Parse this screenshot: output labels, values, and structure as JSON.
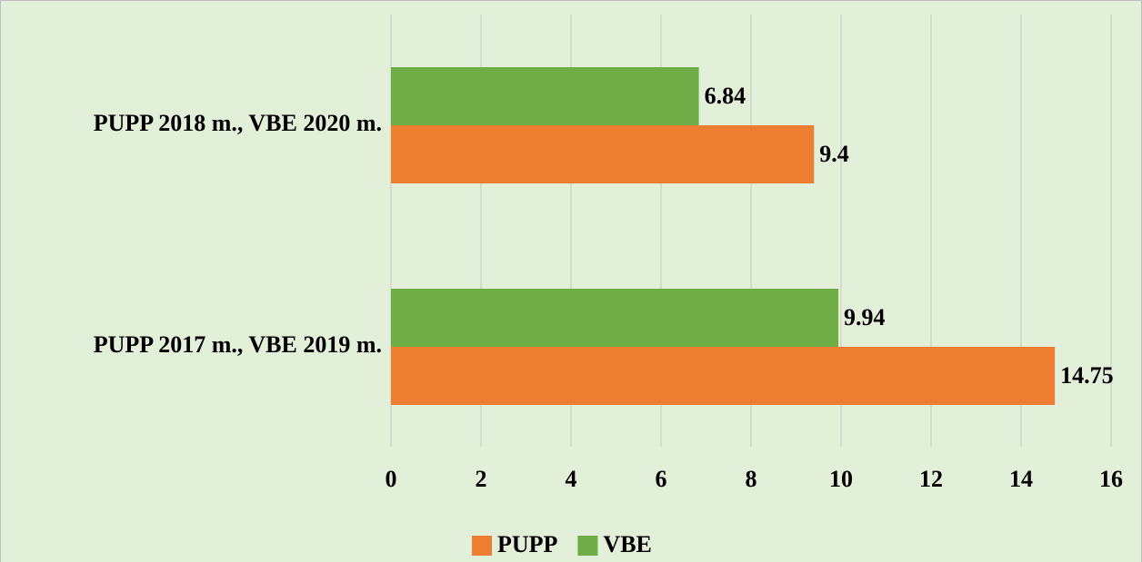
{
  "chart_data": {
    "type": "bar",
    "orientation": "horizontal",
    "categories": [
      "PUPP 2018 m., VBE 2020 m.",
      "PUPP 2017 m., VBE 2019 m."
    ],
    "series": [
      {
        "name": "PUPP",
        "color": "#ed7d31",
        "values": [
          9.4,
          14.75
        ]
      },
      {
        "name": "VBE",
        "color": "#70ad47",
        "values": [
          6.84,
          9.94
        ]
      }
    ],
    "xlim": [
      0,
      16
    ],
    "xticks": [
      0,
      2,
      4,
      6,
      8,
      10,
      12,
      14,
      16
    ],
    "grid": true,
    "legend": "bottom"
  }
}
